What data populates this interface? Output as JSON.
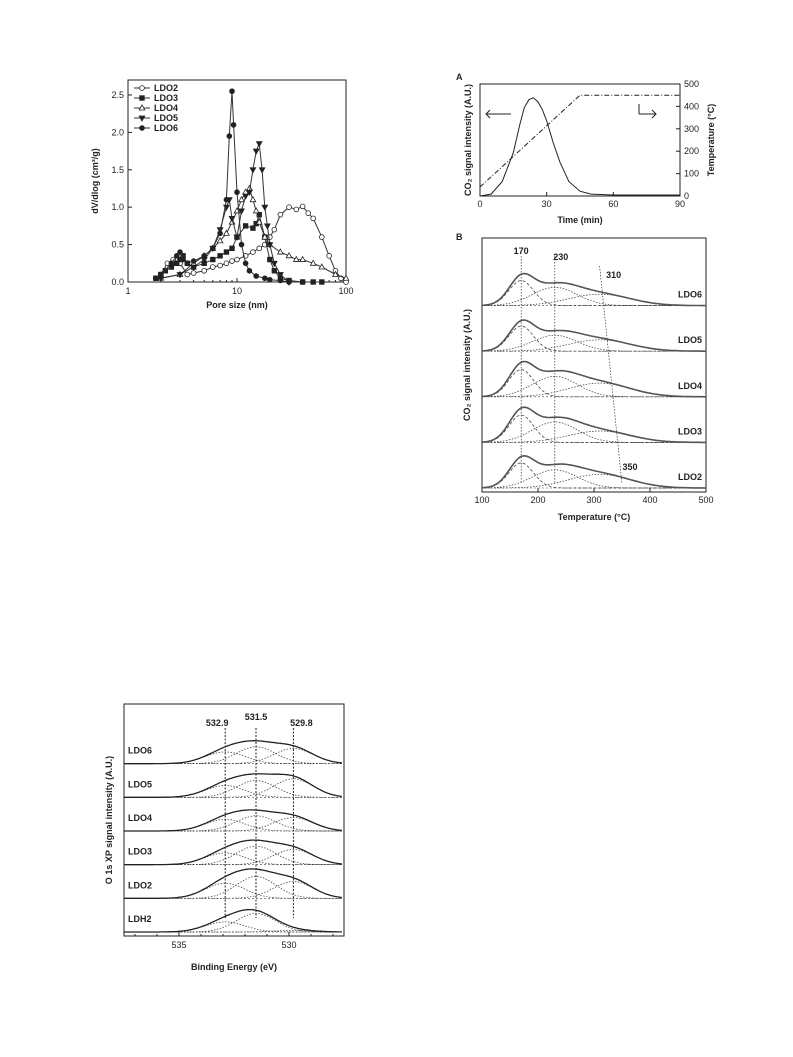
{
  "chart_data": [
    {
      "type": "line",
      "xscale": "log",
      "xlabel": "Pore size (nm)",
      "ylabel": "dV/dlog (cm³/g)",
      "xlim": [
        1,
        100
      ],
      "ylim": [
        0,
        2.7
      ],
      "xticks": [
        "1",
        "10",
        "100"
      ],
      "yticks": [
        "0.0",
        "0.5",
        "1.0",
        "1.5",
        "2.0",
        "2.5"
      ],
      "legend_position": "top-left",
      "series": [
        {
          "name": "LDO2",
          "marker": "open-circle",
          "x": [
            2,
            2.3,
            2.6,
            3,
            3.5,
            4,
            5,
            6,
            7,
            8,
            9,
            10,
            12,
            14,
            16,
            18,
            20,
            22,
            25,
            30,
            35,
            40,
            45,
            50,
            60,
            70,
            80,
            90,
            100
          ],
          "y": [
            0.1,
            0.25,
            0.3,
            0.25,
            0.1,
            0.12,
            0.15,
            0.2,
            0.22,
            0.25,
            0.28,
            0.3,
            0.35,
            0.4,
            0.45,
            0.5,
            0.6,
            0.7,
            0.9,
            1.0,
            0.97,
            1.01,
            0.92,
            0.85,
            0.6,
            0.35,
            0.15,
            0.05,
            0.0
          ]
        },
        {
          "name": "LDO3",
          "marker": "filled-square",
          "x": [
            1.8,
            2,
            2.2,
            2.5,
            2.8,
            3,
            3.2,
            3.5,
            4,
            5,
            6,
            7,
            8,
            9,
            10,
            12,
            14,
            15,
            16,
            18,
            20,
            22,
            25,
            30,
            40,
            50,
            60
          ],
          "y": [
            0.05,
            0.1,
            0.15,
            0.2,
            0.25,
            0.3,
            0.35,
            0.25,
            0.2,
            0.25,
            0.3,
            0.35,
            0.4,
            0.45,
            0.6,
            0.75,
            0.72,
            0.78,
            0.9,
            0.6,
            0.3,
            0.15,
            0.05,
            0.02,
            0.0,
            0.0,
            0.0
          ]
        },
        {
          "name": "LDO4",
          "marker": "open-triangle-up",
          "x": [
            2,
            3,
            4,
            5,
            6,
            7,
            8,
            9,
            10,
            11,
            12,
            13,
            14,
            15,
            16,
            18,
            20,
            25,
            30,
            35,
            40,
            50,
            60,
            80,
            100
          ],
          "y": [
            0.05,
            0.1,
            0.25,
            0.35,
            0.45,
            0.55,
            0.65,
            0.8,
            0.95,
            1.1,
            1.2,
            1.25,
            1.1,
            0.95,
            0.8,
            0.6,
            0.5,
            0.4,
            0.35,
            0.3,
            0.3,
            0.25,
            0.2,
            0.1,
            0.05
          ]
        },
        {
          "name": "LDO5",
          "marker": "filled-triangle-down",
          "x": [
            2,
            3,
            4,
            5,
            6,
            7,
            8,
            8.5,
            9,
            10,
            11,
            12,
            13,
            14,
            15,
            16,
            17,
            18,
            19,
            20,
            22,
            25,
            30
          ],
          "y": [
            0.05,
            0.1,
            0.2,
            0.3,
            0.45,
            0.7,
            1.0,
            1.1,
            0.85,
            0.6,
            0.95,
            1.15,
            1.2,
            1.5,
            1.75,
            1.85,
            1.5,
            1.0,
            0.75,
            0.5,
            0.25,
            0.1,
            0.0
          ]
        },
        {
          "name": "LDO6",
          "marker": "filled-circle",
          "x": [
            1.8,
            2,
            2.5,
            2.8,
            3,
            3.2,
            3.5,
            4,
            5,
            6,
            7,
            8,
            8.5,
            9,
            9.3,
            10,
            11,
            12,
            13,
            15,
            18,
            20,
            25,
            30,
            40
          ],
          "y": [
            0.05,
            0.1,
            0.25,
            0.35,
            0.4,
            0.3,
            0.25,
            0.28,
            0.35,
            0.45,
            0.65,
            1.1,
            1.95,
            2.55,
            2.1,
            1.2,
            0.5,
            0.25,
            0.15,
            0.08,
            0.05,
            0.03,
            0.02,
            0.0,
            0.0
          ]
        }
      ]
    },
    {
      "type": "line",
      "panel_label": "A",
      "xlabel": "Time (min)",
      "ylabel": "CO₂ signal intensity (A.U.)",
      "ylabel_right": "Temperature (°C)",
      "xlim": [
        0,
        90
      ],
      "ylim_right": [
        0,
        500
      ],
      "xticks": [
        "0",
        "30",
        "60",
        "90"
      ],
      "yticks_right": [
        "0",
        "100",
        "200",
        "300",
        "400",
        "500"
      ],
      "series": [
        {
          "name": "CO₂ signal",
          "axis": "left",
          "style": "solid",
          "x": [
            0,
            5,
            10,
            15,
            18,
            20,
            22,
            24,
            26,
            28,
            30,
            33,
            36,
            40,
            45,
            50,
            60,
            70,
            80,
            90
          ],
          "y": [
            0.0,
            0.02,
            0.15,
            0.45,
            0.75,
            0.92,
            1.0,
            1.02,
            0.98,
            0.9,
            0.78,
            0.55,
            0.35,
            0.15,
            0.05,
            0.02,
            0.01,
            0.01,
            0.01,
            0.01
          ]
        },
        {
          "name": "Temperature",
          "axis": "right",
          "style": "dash-dot",
          "x": [
            0,
            45,
            90
          ],
          "y": [
            40,
            450,
            450
          ]
        }
      ]
    },
    {
      "type": "line",
      "panel_label": "B",
      "xlabel": "Temperature (°C)",
      "ylabel": "CO₂ signal intensity (A.U.)",
      "xlim": [
        100,
        500
      ],
      "xticks": [
        "100",
        "200",
        "300",
        "400",
        "500"
      ],
      "stacked_offsets": true,
      "annotations": [
        "170",
        "230",
        "310",
        "350"
      ],
      "samples": [
        "LDO6",
        "LDO5",
        "LDO4",
        "LDO3",
        "LDO2"
      ],
      "guide_lines": [
        {
          "x_top": 170,
          "x_bottom": 170
        },
        {
          "x_top": 230,
          "x_bottom": 230
        },
        {
          "x_top": 310,
          "x_bottom": 350
        }
      ],
      "peak_components": [
        170,
        230,
        310
      ],
      "series_temperature": [
        100,
        120,
        140,
        160,
        170,
        180,
        200,
        220,
        240,
        260,
        280,
        300,
        320,
        350,
        380,
        420,
        460,
        500
      ]
    },
    {
      "type": "line",
      "xlabel": "Binding Energy (eV)",
      "ylabel": "O 1s XP signal intensity (A.U.)",
      "xlim": [
        537.5,
        527.5
      ],
      "xticks": [
        "535",
        "530"
      ],
      "stacked_offsets": true,
      "annotations": [
        "532.9",
        "531.5",
        "529.8"
      ],
      "samples": [
        "LDO6",
        "LDO5",
        "LDO4",
        "LDO3",
        "LDO2",
        "LDH2"
      ],
      "peak_components": [
        532.9,
        531.5,
        529.8
      ]
    }
  ]
}
